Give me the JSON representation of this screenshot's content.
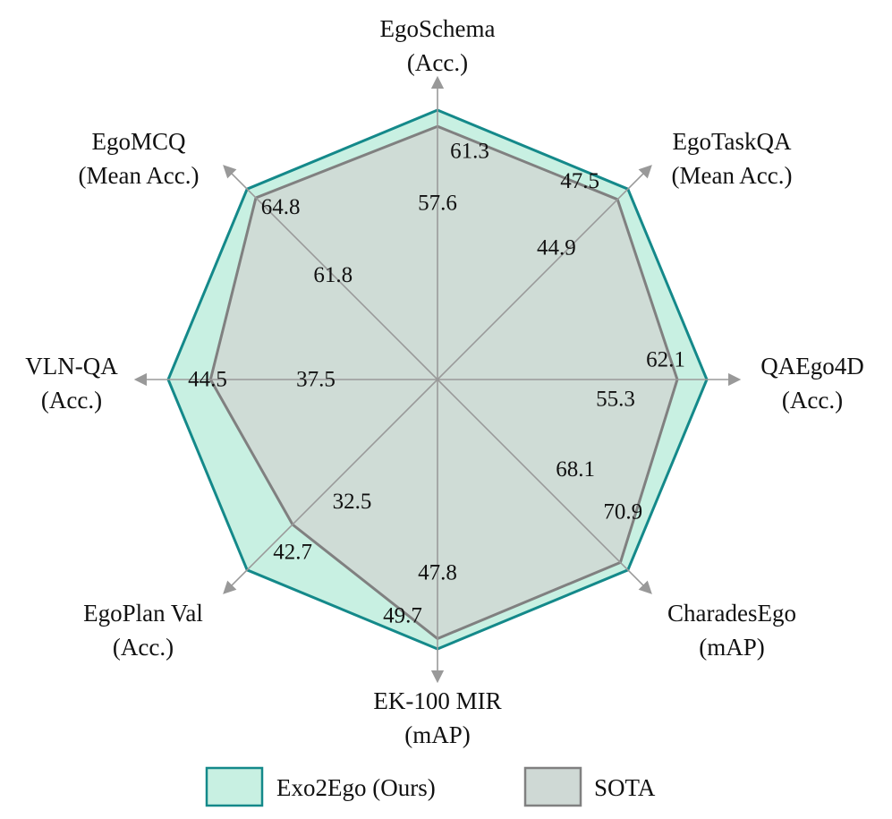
{
  "chart_data": {
    "type": "radar",
    "axes": [
      {
        "name": "EgoSchema",
        "unit": "(Acc.)"
      },
      {
        "name": "EgoTaskQA",
        "unit": "(Mean Acc.)"
      },
      {
        "name": "QAEgo4D",
        "unit": "(Acc.)"
      },
      {
        "name": "CharadesEgo",
        "unit": "(mAP)"
      },
      {
        "name": "EK-100 MIR",
        "unit": "(mAP)"
      },
      {
        "name": "EgoPlan Val",
        "unit": "(Acc.)"
      },
      {
        "name": "VLN-QA",
        "unit": "(Acc.)"
      },
      {
        "name": "EgoMCQ",
        "unit": "(Mean Acc.)"
      }
    ],
    "series": [
      {
        "name": "Exo2Ego (Ours)",
        "values": [
          61.3,
          47.5,
          62.1,
          70.9,
          49.7,
          42.7,
          44.5,
          64.8
        ],
        "labels": [
          "61.3",
          "47.5",
          "62.1",
          "70.9",
          "49.7",
          "42.7",
          "44.5",
          "64.8"
        ],
        "fill": "#c8f0e2",
        "stroke": "#14898a"
      },
      {
        "name": "SOTA",
        "values": [
          57.6,
          44.9,
          55.3,
          68.1,
          47.8,
          32.5,
          37.5,
          61.8
        ],
        "labels": [
          "57.6",
          "44.9",
          "55.3",
          "68.1",
          "47.8",
          "32.5",
          "37.5",
          "61.8"
        ],
        "fill": "#cfd9d5",
        "stroke": "#808080"
      }
    ],
    "grid": true,
    "legend": "bottom"
  }
}
